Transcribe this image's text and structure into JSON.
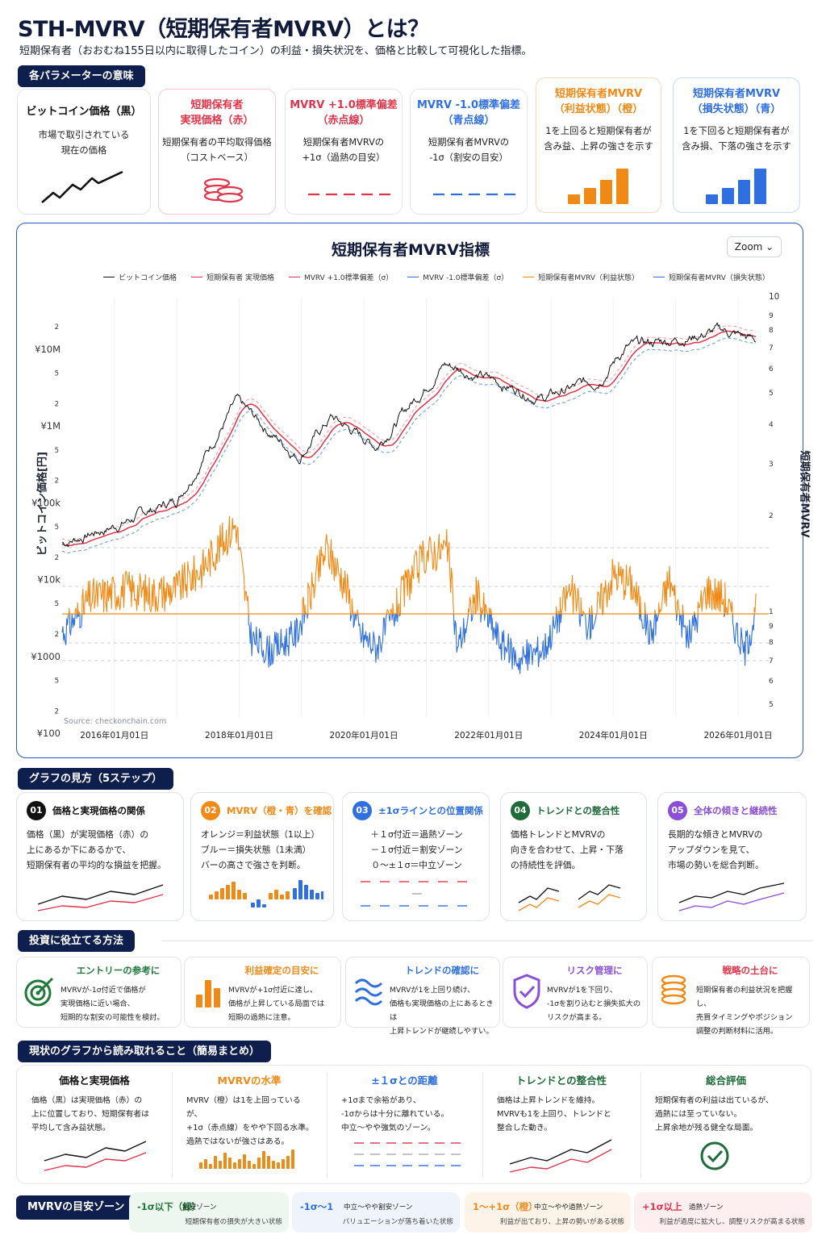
{
  "header": {
    "title": "STH-MVRV（短期保有者MVRV）とは？",
    "subtitle": "短期保有者（おおむね155日以内に取得したコイン）の利益・損失状況を、価格と比較して可視化した指標。"
  },
  "params": {
    "heading": "各パラメーターの意味",
    "cards": [
      {
        "title": "ビットコイン価格（黒）",
        "desc": [
          "市場で取引されている",
          "現在の価格"
        ],
        "color": "#111111",
        "icon": "price-line-icon"
      },
      {
        "title": [
          "短期保有者",
          "実現価格（赤）"
        ],
        "desc": [
          "短期保有者の平均取得価格",
          "（コストベース）"
        ],
        "color": "#e0344a",
        "icon": "coin-stack-icon"
      },
      {
        "title": [
          "MVRV +1.0標準偏差",
          "（赤点線）"
        ],
        "desc": [
          "短期保有者MVRVの",
          "+1σ（過熱の目安）"
        ],
        "color": "#e0344a",
        "icon": "red-dashed-line-icon"
      },
      {
        "title": [
          "MVRV -1.0標準偏差",
          "（青点線）"
        ],
        "desc": [
          "短期保有者MVRVの",
          "-1σ（割安の目安）"
        ],
        "color": "#2f6fe0",
        "icon": "blue-dashed-line-icon"
      },
      {
        "title": [
          "短期保有者MVRV",
          "（利益状態）（橙）"
        ],
        "desc": [
          "1を上回ると短期保有者が",
          "含み益、上昇の強さを示す"
        ],
        "color": "#f08a17",
        "icon": "orange-bars-icon"
      },
      {
        "title": [
          "短期保有者MVRV",
          "（損失状態）（青）"
        ],
        "desc": [
          "1を下回ると短期保有者が",
          "含み損、下落の強さを示す"
        ],
        "color": "#2f6fe0",
        "icon": "blue-bars-icon"
      }
    ]
  },
  "chart": {
    "title": "短期保有者MVRV指標",
    "zoom_label": "Zoom ⌄",
    "legend": [
      {
        "label": "ビットコイン価格",
        "color": "#111111",
        "dash": false
      },
      {
        "label": "短期保有者 実現価格",
        "color": "#e0344a",
        "dash": false
      },
      {
        "label": "MVRV +1.0標準偏差（σ）",
        "color": "#e0344a",
        "dash": false
      },
      {
        "label": "MVRV -1.0標準偏差（σ）",
        "color": "#2f6fe0",
        "dash": false
      },
      {
        "label": "短期保有者MVRV（利益状態）",
        "color": "#f08a17",
        "dash": false
      },
      {
        "label": "短期保有者MVRV（損失状態）",
        "color": "#2f6fe0",
        "dash": false
      }
    ],
    "left_axis_label": "ビットコイン価格[円]",
    "right_axis_label": "短期保有者MVRV",
    "source": "Source: checkonchain.com",
    "left_ticks": [
      {
        "t": "2",
        "v": 20000000
      },
      {
        "t": "¥10M",
        "v": 10000000
      },
      {
        "t": "5",
        "v": 5000000
      },
      {
        "t": "2",
        "v": 2000000
      },
      {
        "t": "¥1M",
        "v": 1000000
      },
      {
        "t": "5",
        "v": 500000
      },
      {
        "t": "2",
        "v": 200000
      },
      {
        "t": "¥100k",
        "v": 100000
      },
      {
        "t": "5",
        "v": 50000
      },
      {
        "t": "2",
        "v": 20000
      },
      {
        "t": "¥10k",
        "v": 10000
      },
      {
        "t": "5",
        "v": 5000
      },
      {
        "t": "2",
        "v": 2000
      },
      {
        "t": "¥1000",
        "v": 1000
      },
      {
        "t": "5",
        "v": 500
      },
      {
        "t": "2",
        "v": 200
      },
      {
        "t": "¥100",
        "v": 100
      }
    ],
    "right_ticks_upper": [
      "10",
      "9",
      "8",
      "7",
      "6",
      "5",
      "4",
      "3",
      "2"
    ],
    "right_ticks_lower": [
      "1",
      "9",
      "8",
      "7",
      "6",
      "5"
    ],
    "x_ticks": [
      "2016年01月01日",
      "2018年01月01日",
      "2020年01月01日",
      "2022年01月01日",
      "2024年01月01日",
      "2026年01月01日"
    ]
  },
  "chart_data": {
    "type": "line",
    "x_range": [
      "2015-03-01",
      "2026-04-15"
    ],
    "y_scale": "log",
    "y_range_price_jpy": [
      100,
      25000000
    ],
    "btc_price_jpy_anchors": [
      {
        "date": "2015-03-01",
        "value": 30000
      },
      {
        "date": "2016-01-01",
        "value": 50000
      },
      {
        "date": "2017-01-01",
        "value": 110000
      },
      {
        "date": "2017-12-15",
        "value": 2000000
      },
      {
        "date": "2018-12-15",
        "value": 400000
      },
      {
        "date": "2019-06-25",
        "value": 1300000
      },
      {
        "date": "2020-03-15",
        "value": 550000
      },
      {
        "date": "2021-04-15",
        "value": 6500000
      },
      {
        "date": "2022-11-15",
        "value": 2300000
      },
      {
        "date": "2023-10-01",
        "value": 4000000
      },
      {
        "date": "2024-03-15",
        "value": 10500000
      },
      {
        "date": "2025-10-01",
        "value": 17500000
      },
      {
        "date": "2026-04-15",
        "value": 13000000
      }
    ],
    "mvrv_reference_level": 1,
    "series": [
      {
        "name": "ビットコイン価格",
        "color": "#111111"
      },
      {
        "name": "短期保有者 実現価格",
        "color": "#e0344a"
      },
      {
        "name": "MVRV +1.0標準偏差（σ）",
        "color": "#e0344a"
      },
      {
        "name": "MVRV -1.0標準偏差（σ）",
        "color": "#2f6fe0"
      },
      {
        "name": "短期保有者MVRV（利益状態）",
        "color": "#f08a17"
      },
      {
        "name": "短期保有者MVRV（損失状態）",
        "color": "#2f6fe0"
      }
    ]
  },
  "steps": {
    "heading": "グラフの見方（5ステップ）",
    "items": [
      {
        "num": "01",
        "title": "価格と実現価格の関係",
        "lines": [
          "価格（黒）が実現価格（赤）の",
          "上にあるか下にあるかで、",
          "短期保有者の平均的な損益を把握。"
        ],
        "color": "#111111"
      },
      {
        "num": "02",
        "title": "MVRV（橙・青）を確認",
        "lines": [
          "オレンジ＝利益状態（1以上）",
          "ブルー＝損失状態（1未満）",
          "バーの高さで強さを判断。"
        ],
        "color": "#f08a17"
      },
      {
        "num": "03",
        "title": "±1σラインとの位置関係",
        "lines": [
          "＋１σ付近＝過熱ゾーン",
          "－１σ付近＝割安ゾーン",
          "０～±１σ＝中立ゾーン"
        ],
        "color": "#2f6fe0"
      },
      {
        "num": "04",
        "title": "トレンドとの整合性",
        "lines": [
          "価格トレンドとMVRVの",
          "向きを合わせて、上昇・下落",
          "の持続性を評価。"
        ],
        "color": "#1f6b3a"
      },
      {
        "num": "05",
        "title": "全体の傾きと継続性",
        "lines": [
          "長期的な傾きとMVRVの",
          "アップダウンを見て、",
          "市場の勢いを総合判断。"
        ],
        "color": "#8a4fd6"
      }
    ]
  },
  "uses": {
    "heading": "投資に役立てる方法",
    "items": [
      {
        "title": "エントリーの参考に",
        "lines": [
          "MVRVが-1σ付近で価格が",
          "実現価格に近い場合、",
          "短期的な割安の可能性を検討。"
        ],
        "color": "#1f7a3a",
        "icon": "target-icon"
      },
      {
        "title": "利益確定の目安に",
        "lines": [
          "MVRVが+1σ付近に達し、",
          "価格が上昇している局面では",
          "短期の過熱に注意。"
        ],
        "color": "#f08a17",
        "icon": "bar-chart-icon"
      },
      {
        "title": "トレンドの確認に",
        "lines": [
          "MVRVが1を上回り続け、",
          "価格も実現価格の上にあるときは",
          "上昇トレンドが継続しやすい。"
        ],
        "color": "#2f6fe0",
        "icon": "wave-icon"
      },
      {
        "title": "リスク管理に",
        "lines": [
          "MVRVが1を下回り、",
          "-1σを割り込むと損失拡大の",
          "リスクが高まる。"
        ],
        "color": "#8a4fd6",
        "icon": "shield-check-icon"
      },
      {
        "title": "戦略の土台に",
        "lines": [
          "短期保有者の利益状況を把握し、",
          "売買タイミングやポジション",
          "調整の判断材料に活用。"
        ],
        "color": "#e0344a",
        "icon": "coin-stack-icon"
      }
    ]
  },
  "summary": {
    "heading": "現状のグラフから読み取れること（簡易まとめ）",
    "cols": [
      {
        "title": "価格と実現価格",
        "lines": [
          "価格（黒）は実現価格（赤）の",
          "上に位置しており、短期保有者は",
          "平均して含み益状態。"
        ],
        "color": "#111111"
      },
      {
        "title": "MVRVの水準",
        "lines": [
          "MVRV（橙）は1を上回っているが、",
          "+1σ（赤点線）をやや下回る水準。",
          "過熱ではないが強さはある。"
        ],
        "color": "#f08a17"
      },
      {
        "title": "±１σとの距離",
        "lines": [
          "+1σまで余裕があり、",
          "-1σからは十分に離れている。",
          "中立～やや強気のゾーン。"
        ],
        "color": "#2f6fe0"
      },
      {
        "title": "トレンドとの整合性",
        "lines": [
          "価格は上昇トレンドを維持。",
          "MVRVも1を上回り、トレンドと",
          "整合した動き。"
        ],
        "color": "#1f6b3a"
      },
      {
        "title": "総合評価",
        "lines": [
          "短期保有者の利益は出ているが、",
          "過熱には至っていない。",
          "上昇余地が残る健全な局面。"
        ],
        "color": "#1f6b3a"
      }
    ]
  },
  "zones": {
    "heading": "MVRVの目安ゾーン",
    "items": [
      {
        "label": "-1σ以下（緑）",
        "sub": "割安ゾーン",
        "desc": "短期保有者の損失が大きい状態",
        "color": "#1f7a3a",
        "bg": "#eef7ef"
      },
      {
        "label": "-1σ～1",
        "sub": "中立～やや割安ゾーン",
        "desc": "バリュエーションが落ち着いた状態",
        "color": "#2f6fe0",
        "bg": "#eef3fc"
      },
      {
        "label": "1～+1σ（橙）",
        "sub": "中立～やや過熱ゾーン",
        "desc": "利益が出ており、上昇の勢いがある状態",
        "color": "#f08a17",
        "bg": "#fdf3e8"
      },
      {
        "label": "+1σ以上",
        "sub": "過熱ゾーン",
        "desc": "利益が過度に拡大し、調整リスクが高まる状態",
        "color": "#e0344a",
        "bg": "#fdeeef"
      }
    ]
  }
}
